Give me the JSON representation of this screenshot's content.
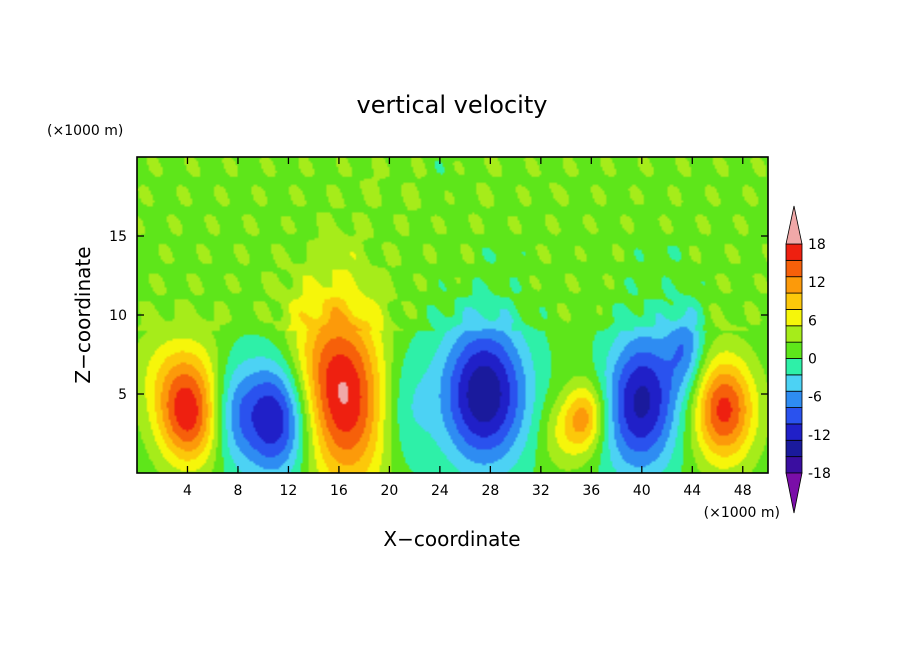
{
  "chart_data": {
    "type": "heatmap",
    "title": "vertical velocity",
    "xlabel": "X−coordinate",
    "ylabel": "Z−coordinate",
    "x_unit": "(×1000 m)",
    "y_unit": "(×1000 m)",
    "xlim": [
      0,
      50
    ],
    "ylim": [
      0,
      20
    ],
    "x_ticks": [
      4,
      8,
      12,
      16,
      20,
      24,
      28,
      32,
      36,
      40,
      44,
      48
    ],
    "y_ticks": [
      5,
      10,
      15
    ],
    "colorbar": {
      "levels": [
        -21,
        -18,
        -15,
        -12,
        -9,
        -6,
        -3,
        0,
        3,
        6,
        9,
        12,
        15,
        18,
        21
      ],
      "labels": [
        18,
        12,
        6,
        0,
        -6,
        -12,
        -18
      ],
      "colors": [
        "#7a0ea8",
        "#3a0ea0",
        "#1a1a9c",
        "#2020c8",
        "#2a52ee",
        "#2e8cf2",
        "#4cd2f4",
        "#2ef0a8",
        "#5ee61a",
        "#a6ec1a",
        "#f6f60a",
        "#fcc80a",
        "#fc9a0a",
        "#f6600a",
        "#ee2010",
        "#f0a8a8"
      ],
      "extend": "both"
    },
    "features": [
      {
        "x": 4,
        "z": 3.5,
        "w": 0.95,
        "sx": 1.6,
        "sz": 2.0,
        "angle": 0.4
      },
      {
        "x": 3.5,
        "z": 6.5,
        "w": 0.35,
        "sx": 2.5,
        "sz": 2.0,
        "angle": 0
      },
      {
        "x": 11,
        "z": 3.5,
        "w": -1.0,
        "sx": 2.0,
        "sz": 2.6,
        "angle": 0.15
      },
      {
        "x": 16.2,
        "z": 5.0,
        "w": 1.15,
        "sx": 2.3,
        "sz": 3.5,
        "angle": 0.55
      },
      {
        "x": 27.5,
        "z": 5.0,
        "w": -1.05,
        "sx": 2.4,
        "sz": 3.2,
        "angle": 0
      },
      {
        "x": 33.5,
        "z": 2.5,
        "w": 0.25,
        "sx": 1.2,
        "sz": 1.6,
        "angle": 0
      },
      {
        "x": 35.5,
        "z": 3.5,
        "w": 0.7,
        "sx": 1.1,
        "sz": 1.5,
        "angle": -0.3
      },
      {
        "x": 40.0,
        "z": 4.5,
        "w": -0.95,
        "sx": 2.0,
        "sz": 3.0,
        "angle": -0.3
      },
      {
        "x": 43.5,
        "z": 8.0,
        "w": -0.45,
        "sx": 1.0,
        "sz": 2.0,
        "angle": 0
      },
      {
        "x": 46.5,
        "z": 4.0,
        "w": 1.0,
        "sx": 1.7,
        "sz": 2.3,
        "angle": 0
      },
      {
        "x": 21.0,
        "z": 4.0,
        "w": -0.35,
        "sx": 1.6,
        "sz": 3.0,
        "angle": 0
      },
      {
        "x": 7.5,
        "z": 4.0,
        "w": -0.35,
        "sx": 1.2,
        "sz": 2.5,
        "angle": 0
      }
    ]
  }
}
